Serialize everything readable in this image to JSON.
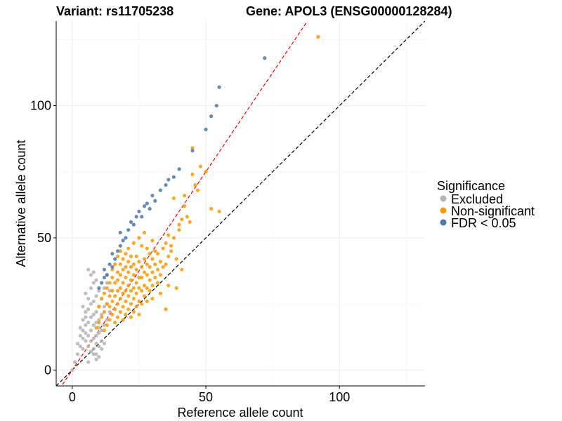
{
  "chart_data": {
    "type": "scatter",
    "title_left": "Variant: rs11705238",
    "title_right": "Gene: APOL3 (ENSG00000128284)",
    "xlabel": "Reference allele count",
    "ylabel": "Alternative allele count",
    "xlim": [
      -6,
      132
    ],
    "ylim": [
      -6,
      132
    ],
    "x_ticks": [
      0,
      50,
      100
    ],
    "y_ticks": [
      0,
      50,
      100
    ],
    "grid": true,
    "reference_lines": [
      {
        "name": "identity",
        "slope": 1.0,
        "intercept": 0,
        "color": "#000000",
        "style": "dashed"
      },
      {
        "name": "fitted",
        "slope": 1.5,
        "intercept": 0,
        "color": "#ff0000",
        "style": "dashed"
      }
    ],
    "legend": {
      "title": "Significance",
      "position": "right",
      "entries": [
        {
          "label": "Excluded",
          "color": "#b3b3b3"
        },
        {
          "label": "Non-significant",
          "color": "#ff9900"
        },
        {
          "label": "FDR < 0.05",
          "color": "#4a77ac"
        }
      ]
    },
    "series": [
      {
        "name": "Excluded",
        "color": "#b3b3b3",
        "x": [
          0,
          1,
          2,
          2,
          3,
          3,
          3,
          4,
          4,
          4,
          4,
          5,
          5,
          5,
          5,
          5,
          6,
          6,
          6,
          6,
          6,
          7,
          7,
          7,
          7,
          7,
          7,
          8,
          8,
          8,
          8,
          8,
          8,
          9,
          9,
          9,
          9,
          9,
          9,
          9,
          10,
          10,
          10,
          10,
          10,
          10,
          11,
          11,
          11,
          11,
          12,
          12,
          12,
          12,
          13,
          13,
          13,
          14,
          14,
          6,
          7,
          8,
          5,
          10,
          11,
          9,
          8,
          4,
          6
        ],
        "y": [
          0,
          3,
          6,
          10,
          9,
          13,
          16,
          12,
          15,
          19,
          24,
          11,
          14,
          17,
          22,
          29,
          9,
          13,
          18,
          23,
          27,
          7,
          11,
          15,
          20,
          25,
          31,
          8,
          12,
          17,
          21,
          26,
          33,
          6,
          10,
          13,
          18,
          22,
          28,
          34,
          5,
          9,
          14,
          19,
          24,
          30,
          8,
          15,
          21,
          27,
          10,
          17,
          24,
          31,
          19,
          25,
          33,
          22,
          30,
          38,
          36,
          37,
          20,
          16,
          11,
          4,
          6,
          8,
          3
        ]
      },
      {
        "name": "Non-significant",
        "color": "#ff9900",
        "x": [
          9,
          10,
          10,
          11,
          11,
          12,
          12,
          12,
          13,
          13,
          13,
          13,
          14,
          14,
          14,
          14,
          15,
          15,
          15,
          15,
          15,
          16,
          16,
          16,
          16,
          16,
          17,
          17,
          17,
          17,
          17,
          17,
          18,
          18,
          18,
          18,
          18,
          18,
          19,
          19,
          19,
          19,
          19,
          19,
          20,
          20,
          20,
          20,
          20,
          20,
          21,
          21,
          21,
          21,
          21,
          21,
          22,
          22,
          22,
          22,
          22,
          22,
          23,
          23,
          23,
          23,
          23,
          23,
          24,
          24,
          24,
          24,
          24,
          25,
          25,
          25,
          25,
          25,
          25,
          26,
          26,
          26,
          26,
          26,
          27,
          27,
          27,
          27,
          27,
          28,
          28,
          28,
          28,
          28,
          29,
          29,
          29,
          29,
          30,
          30,
          30,
          30,
          31,
          31,
          31,
          32,
          32,
          32,
          33,
          33,
          34,
          34,
          35,
          35,
          36,
          36,
          37,
          38,
          39,
          40,
          41,
          42,
          43,
          45,
          45,
          47,
          48,
          50,
          52,
          55,
          37,
          39,
          41,
          44,
          38,
          36,
          40,
          33,
          30,
          46,
          42,
          35,
          92
        ],
        "y": [
          16,
          18,
          24,
          20,
          27,
          15,
          22,
          29,
          17,
          25,
          31,
          36,
          19,
          24,
          28,
          33,
          21,
          26,
          30,
          35,
          38,
          18,
          23,
          28,
          33,
          40,
          20,
          25,
          30,
          34,
          37,
          43,
          22,
          27,
          31,
          36,
          40,
          45,
          19,
          24,
          29,
          33,
          38,
          42,
          21,
          26,
          30,
          35,
          39,
          44,
          23,
          28,
          32,
          37,
          41,
          46,
          20,
          25,
          30,
          34,
          39,
          43,
          22,
          27,
          31,
          36,
          40,
          48,
          24,
          29,
          33,
          38,
          43,
          21,
          26,
          31,
          35,
          41,
          50,
          25,
          30,
          35,
          39,
          47,
          28,
          32,
          37,
          42,
          52,
          26,
          31,
          36,
          40,
          46,
          30,
          34,
          39,
          44,
          32,
          37,
          42,
          49,
          35,
          40,
          45,
          33,
          38,
          44,
          36,
          41,
          39,
          46,
          40,
          48,
          43,
          51,
          47,
          50,
          42,
          53,
          57,
          62,
          58,
          74,
          84,
          68,
          77,
          75,
          61,
          60,
          45,
          31,
          38,
          56,
          65,
          32,
          55,
          29,
          27,
          70,
          66,
          23,
          126
        ]
      },
      {
        "name": "FDR < 0.05",
        "color": "#4a77ac",
        "x": [
          10,
          11,
          12,
          12,
          13,
          14,
          15,
          15,
          16,
          17,
          18,
          18,
          19,
          20,
          21,
          22,
          23,
          24,
          25,
          26,
          27,
          28,
          29,
          30,
          31,
          33,
          35,
          36,
          38,
          40,
          45,
          50,
          52,
          54,
          55,
          72
        ],
        "y": [
          31,
          33,
          35,
          38,
          36,
          40,
          39,
          44,
          42,
          45,
          47,
          52,
          49,
          50,
          53,
          56,
          55,
          58,
          60,
          58,
          62,
          63,
          61,
          66,
          64,
          68,
          70,
          72,
          73,
          76,
          83,
          91,
          96,
          100,
          107,
          118
        ]
      }
    ]
  }
}
